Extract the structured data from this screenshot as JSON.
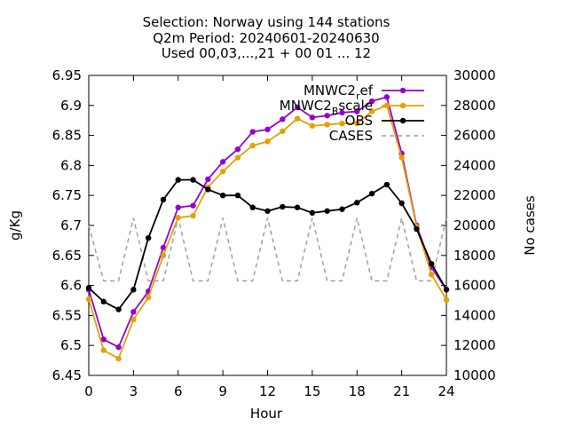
{
  "title_lines": [
    "Selection: Norway using   144 stations",
    "Q2m   Period: 20240601-20240630",
    "Used 00,03,...,21 + 00 01 ... 12"
  ],
  "chart_data": {
    "type": "line",
    "xlabel": "Hour",
    "ylabel": "g/Kg",
    "y2label": "No cases",
    "xlim": [
      0,
      24
    ],
    "ylim": [
      6.45,
      6.95
    ],
    "y2lim": [
      10000,
      30000
    ],
    "xticks": [
      0,
      3,
      6,
      9,
      12,
      15,
      18,
      21,
      24
    ],
    "yticks": [
      6.45,
      6.5,
      6.55,
      6.6,
      6.65,
      6.7,
      6.75,
      6.8,
      6.85,
      6.9,
      6.95
    ],
    "y2ticks": [
      10000,
      12000,
      14000,
      16000,
      18000,
      20000,
      22000,
      24000,
      26000,
      28000,
      30000
    ],
    "legend_position": "top-right",
    "x": [
      0,
      1,
      2,
      3,
      4,
      5,
      6,
      7,
      8,
      9,
      10,
      11,
      12,
      13,
      14,
      15,
      16,
      17,
      18,
      19,
      20,
      21,
      22,
      23,
      24
    ],
    "series": [
      {
        "name": "MNWC2",
        "name_sub": "r",
        "name_rest": "ef",
        "color": "#9400d3",
        "marker": "circle",
        "axis": "y",
        "values": [
          6.593,
          6.51,
          6.497,
          6.556,
          6.59,
          6.663,
          6.73,
          6.733,
          6.777,
          6.806,
          6.827,
          6.856,
          6.86,
          6.877,
          6.897,
          6.88,
          6.883,
          6.888,
          6.89,
          6.907,
          6.914,
          6.82,
          6.7,
          6.63,
          6.593
        ]
      },
      {
        "name": "MNWC2",
        "name_sub": "B",
        "name_rest": "scale",
        "color": "#e5a100",
        "marker": "circle",
        "axis": "y",
        "values": [
          6.577,
          6.492,
          6.478,
          6.543,
          6.58,
          6.65,
          6.713,
          6.716,
          6.764,
          6.79,
          6.813,
          6.833,
          6.84,
          6.857,
          6.878,
          6.866,
          6.868,
          6.87,
          6.87,
          6.89,
          6.9,
          6.813,
          6.698,
          6.618,
          6.576
        ]
      },
      {
        "name": "OBS",
        "color": "#000000",
        "marker": "circle",
        "axis": "y",
        "values": [
          6.596,
          6.573,
          6.56,
          6.593,
          6.679,
          6.743,
          6.776,
          6.776,
          6.76,
          6.75,
          6.75,
          6.73,
          6.724,
          6.731,
          6.73,
          6.721,
          6.724,
          6.727,
          6.738,
          6.753,
          6.768,
          6.737,
          6.694,
          6.636,
          6.593
        ]
      },
      {
        "name": "CASES",
        "color": "#a0a0a0",
        "dashed": true,
        "axis": "y2",
        "values": [
          20000,
          16300,
          16300,
          20500,
          16300,
          16300,
          20500,
          16300,
          16300,
          20500,
          16300,
          16300,
          20500,
          16300,
          16300,
          20500,
          16300,
          16300,
          20500,
          16300,
          16300,
          20500,
          16300,
          16300,
          20500
        ]
      }
    ]
  }
}
